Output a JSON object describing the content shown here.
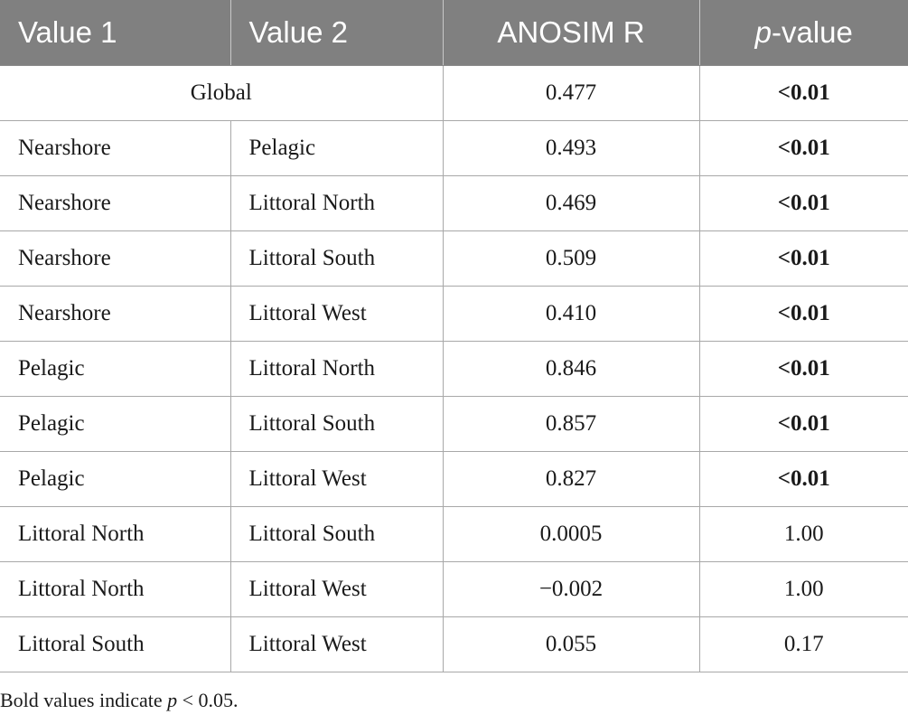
{
  "table": {
    "headers": {
      "value1": "Value 1",
      "value2": "Value 2",
      "anosim_r": "ANOSIM R",
      "p_value_p": "p",
      "p_value_rest": "-value"
    },
    "global_row": {
      "label": "Global",
      "r": "0.477",
      "p": "<0.01",
      "p_bold": true
    },
    "rows": [
      {
        "v1": "Nearshore",
        "v2": "Pelagic",
        "r": "0.493",
        "p": "<0.01",
        "p_bold": true
      },
      {
        "v1": "Nearshore",
        "v2": "Littoral North",
        "r": "0.469",
        "p": "<0.01",
        "p_bold": true
      },
      {
        "v1": "Nearshore",
        "v2": "Littoral South",
        "r": "0.509",
        "p": "<0.01",
        "p_bold": true
      },
      {
        "v1": "Nearshore",
        "v2": "Littoral West",
        "r": "0.410",
        "p": "<0.01",
        "p_bold": true
      },
      {
        "v1": "Pelagic",
        "v2": "Littoral North",
        "r": "0.846",
        "p": "<0.01",
        "p_bold": true
      },
      {
        "v1": "Pelagic",
        "v2": "Littoral South",
        "r": "0.857",
        "p": "<0.01",
        "p_bold": true
      },
      {
        "v1": "Pelagic",
        "v2": "Littoral West",
        "r": "0.827",
        "p": "<0.01",
        "p_bold": true
      },
      {
        "v1": "Littoral North",
        "v2": "Littoral South",
        "r": "0.0005",
        "p": "1.00",
        "p_bold": false
      },
      {
        "v1": "Littoral North",
        "v2": "Littoral West",
        "r": "−0.002",
        "p": "1.00",
        "p_bold": false
      },
      {
        "v1": "Littoral South",
        "v2": "Littoral West",
        "r": "0.055",
        "p": "0.17",
        "p_bold": false
      }
    ]
  },
  "footnote": {
    "before": "Bold values indicate ",
    "p_symbol": "p",
    "after": " < 0.05."
  },
  "colors": {
    "header_bg": "#808080",
    "header_text": "#ffffff",
    "border": "#a8a8a8"
  }
}
